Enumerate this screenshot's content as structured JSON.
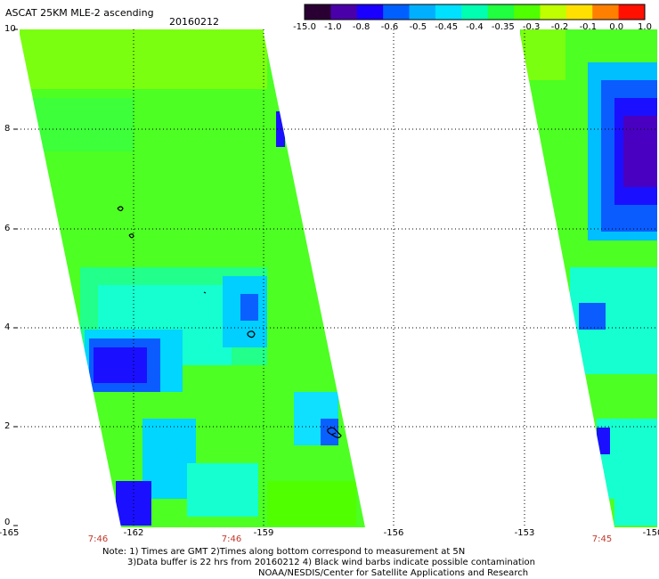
{
  "header": {
    "title": "ASCAT 25KM MLE-2 ascending",
    "date": "20160212"
  },
  "colorbar": {
    "labels": [
      "-15.0",
      "-1.0",
      "-0.8",
      "-0.6",
      "-0.5",
      "-0.45",
      "-0.4",
      "-0.35",
      "-0.3",
      "-0.2",
      "-0.1",
      "0.0",
      "1.0"
    ],
    "colors": [
      "#2a0033",
      "#4a00a8",
      "#1a00ff",
      "#0060ff",
      "#00b0ff",
      "#00e0ff",
      "#00ffb0",
      "#20ff40",
      "#50ff00",
      "#c0ff00",
      "#ffe000",
      "#ff8000",
      "#ff1000"
    ]
  },
  "axes": {
    "lat_labels": [
      "10",
      "8",
      "6",
      "4",
      "2",
      "0"
    ],
    "lon_labels": [
      "-165",
      "-162",
      "-159",
      "-156",
      "-153",
      "-150"
    ],
    "time_labels": [
      "7:46",
      "7:46",
      "7:45"
    ]
  },
  "note": {
    "line1": "Note: 1) Times are GMT 2)Times along bottom correspond to measurement at 5N",
    "line2": "3)Data buffer is 22 hrs from 20160212 4) Black wind barbs indicate possible contamination",
    "line3": "NOAA/NESDIS/Center for Satellite Applications and Research"
  }
}
